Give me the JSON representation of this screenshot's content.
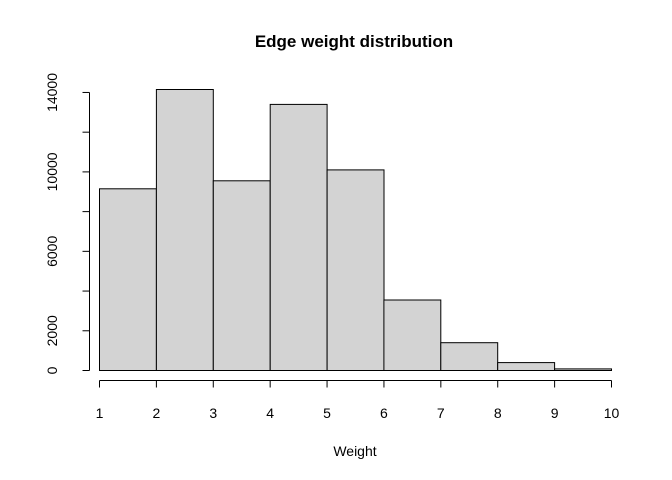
{
  "chart_data": {
    "type": "bar",
    "title": "Edge weight distribution",
    "xlabel": "Weight",
    "ylabel": "",
    "bins": [
      {
        "from": 1,
        "to": 2,
        "count": 9150
      },
      {
        "from": 2,
        "to": 3,
        "count": 14150
      },
      {
        "from": 3,
        "to": 4,
        "count": 9550
      },
      {
        "from": 4,
        "to": 5,
        "count": 13400
      },
      {
        "from": 5,
        "to": 6,
        "count": 10100
      },
      {
        "from": 6,
        "to": 7,
        "count": 3550
      },
      {
        "from": 7,
        "to": 8,
        "count": 1400
      },
      {
        "from": 8,
        "to": 9,
        "count": 400
      },
      {
        "from": 9,
        "to": 10,
        "count": 80
      }
    ],
    "xlim": [
      1,
      10
    ],
    "ylim": [
      0,
      14300
    ],
    "x_ticks": [
      1,
      2,
      3,
      4,
      5,
      6,
      7,
      8,
      9,
      10
    ],
    "y_ticks": [
      0,
      2000,
      4000,
      6000,
      8000,
      10000,
      12000,
      14000
    ],
    "y_tick_labels": [
      "0",
      "2000",
      "",
      "6000",
      "",
      "10000",
      "",
      "14000"
    ],
    "bar_fill": "#d3d3d3",
    "bar_stroke": "#000000",
    "grid": false,
    "legend": "none"
  }
}
